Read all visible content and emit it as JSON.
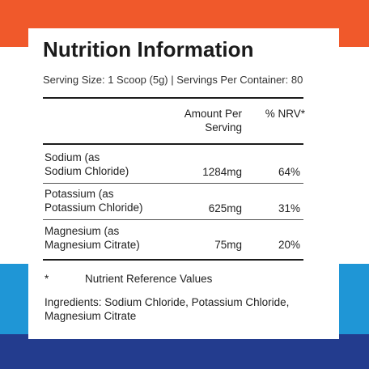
{
  "colors": {
    "top_band": "#f0592b",
    "blue_band": "#1f96d6",
    "bottom_band": "#233c8e",
    "panel": "#ffffff",
    "text": "#1b1b1b"
  },
  "title": "Nutrition Information",
  "serving_line": "Serving Size: 1 Scoop (5g)  | Servings Per Container: 80",
  "table": {
    "headers": {
      "amount_line1": "Amount Per",
      "amount_line2": "Serving",
      "nrv": "% NRV*"
    },
    "rows": [
      {
        "name_line1": "Sodium (as",
        "name_line2": "Sodium Chloride)",
        "amount": "1284mg",
        "nrv": "64%"
      },
      {
        "name_line1": "Potassium (as",
        "name_line2": "Potassium Chloride)",
        "amount": "625mg",
        "nrv": "31%"
      },
      {
        "name_line1": "Magnesium (as",
        "name_line2": "Magnesium Citrate)",
        "amount": "75mg",
        "nrv": "20%"
      }
    ]
  },
  "footnote": {
    "marker": "*",
    "text": "Nutrient Reference Values"
  },
  "ingredients": "Ingredients: Sodium Chloride, Potassium Chloride, Magnesium Citrate"
}
